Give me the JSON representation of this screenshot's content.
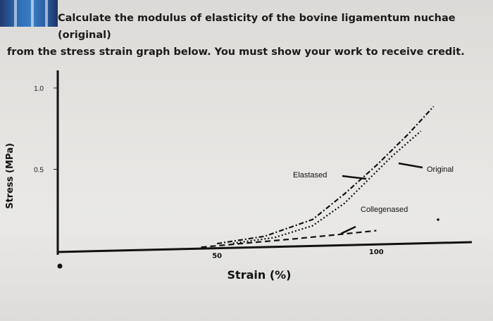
{
  "question": {
    "line1": "Calculate the modulus of elasticity of the bovine ligamentum nuchae (original)",
    "line2": "from the stress strain graph below.  You must show your work to receive credit."
  },
  "chart_data": {
    "type": "line",
    "title": "",
    "xlabel": "Strain (%)",
    "ylabel": "Stress (MPa)",
    "xlim": [
      0,
      130
    ],
    "ylim": [
      0,
      1.1
    ],
    "x_ticks": [
      "0",
      "50",
      "100"
    ],
    "y_ticks": [
      "0.5",
      "1.0"
    ],
    "grid": false,
    "series": [
      {
        "name": "Original",
        "style": "dash-dot",
        "points": [
          [
            50,
            0.02
          ],
          [
            65,
            0.06
          ],
          [
            80,
            0.16
          ],
          [
            90,
            0.32
          ],
          [
            100,
            0.5
          ],
          [
            110,
            0.7
          ],
          [
            118,
            0.88
          ]
        ]
      },
      {
        "name": "Elastased",
        "style": "dotted",
        "points": [
          [
            55,
            0.02
          ],
          [
            68,
            0.05
          ],
          [
            80,
            0.12
          ],
          [
            90,
            0.26
          ],
          [
            98,
            0.42
          ],
          [
            105,
            0.56
          ],
          [
            114,
            0.72
          ]
        ]
      },
      {
        "name": "Collegenased",
        "style": "dashed",
        "points": [
          [
            45,
            0.0
          ],
          [
            60,
            0.02
          ],
          [
            75,
            0.04
          ],
          [
            88,
            0.06
          ],
          [
            100,
            0.08
          ]
        ]
      }
    ],
    "annotations": [
      "Original",
      "Elastased",
      "Collegenased"
    ]
  }
}
